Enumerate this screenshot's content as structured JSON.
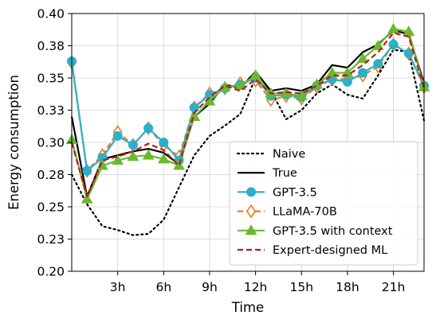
{
  "chart_data": {
    "type": "line",
    "xlabel": "Time",
    "ylabel": "Energy consumption",
    "xlim": [
      0,
      23
    ],
    "ylim": [
      0.2,
      0.4
    ],
    "x_ticks": [
      3,
      6,
      9,
      12,
      15,
      18,
      21
    ],
    "x_tick_labels": [
      "3h",
      "6h",
      "9h",
      "12h",
      "15h",
      "18h",
      "21h"
    ],
    "y_ticks": [
      0.2,
      0.225,
      0.25,
      0.275,
      0.3,
      0.325,
      0.35,
      0.375,
      0.4
    ],
    "y_tick_labels": [
      "0.20",
      "0.23",
      "0.25",
      "0.28",
      "0.30",
      "0.33",
      "0.35",
      "0.38",
      "0.40"
    ],
    "grid": true,
    "legend_position": "bottom-right",
    "x": [
      0,
      1,
      2,
      3,
      4,
      5,
      6,
      7,
      8,
      9,
      10,
      11,
      12,
      13,
      14,
      15,
      16,
      17,
      18,
      19,
      20,
      21,
      22,
      23
    ],
    "series": [
      {
        "name": "Naive",
        "color": "#000000",
        "style": "dotted",
        "marker": "none",
        "values": [
          0.275,
          0.252,
          0.235,
          0.232,
          0.228,
          0.229,
          0.24,
          0.265,
          0.29,
          0.305,
          0.313,
          0.322,
          0.35,
          0.34,
          0.318,
          0.325,
          0.338,
          0.345,
          0.337,
          0.334,
          0.352,
          0.372,
          0.37,
          0.317
        ]
      },
      {
        "name": "True",
        "color": "#000000",
        "style": "solid",
        "marker": "none",
        "values": [
          0.32,
          0.258,
          0.287,
          0.29,
          0.293,
          0.295,
          0.292,
          0.283,
          0.32,
          0.33,
          0.345,
          0.342,
          0.355,
          0.34,
          0.342,
          0.34,
          0.345,
          0.36,
          0.358,
          0.37,
          0.376,
          0.387,
          0.384,
          0.346
        ]
      },
      {
        "name": "GPT-3.5",
        "color": "#2bb0c8",
        "style": "solid",
        "marker": "circle",
        "values": [
          0.363,
          0.278,
          0.288,
          0.305,
          0.298,
          0.311,
          0.3,
          0.286,
          0.327,
          0.337,
          0.342,
          0.345,
          0.35,
          0.336,
          0.337,
          0.335,
          0.344,
          0.349,
          0.347,
          0.354,
          0.361,
          0.376,
          0.369,
          0.344
        ]
      },
      {
        "name": "LLaMA-70B",
        "color": "#f0781e",
        "style": "dashed",
        "marker": "diamond",
        "values": [
          0.362,
          0.278,
          0.29,
          0.308,
          0.298,
          0.311,
          0.298,
          0.289,
          0.327,
          0.338,
          0.342,
          0.346,
          0.348,
          0.333,
          0.336,
          0.334,
          0.343,
          0.349,
          0.349,
          0.352,
          0.359,
          0.376,
          0.369,
          0.343
        ]
      },
      {
        "name": "GPT-3.5 with context",
        "color": "#6ab82f",
        "style": "solid",
        "marker": "triangle",
        "values": [
          0.302,
          0.256,
          0.282,
          0.286,
          0.289,
          0.29,
          0.287,
          0.282,
          0.32,
          0.332,
          0.343,
          0.344,
          0.352,
          0.338,
          0.338,
          0.336,
          0.345,
          0.354,
          0.354,
          0.365,
          0.375,
          0.388,
          0.386,
          0.343
        ]
      },
      {
        "name": "Expert-designed ML",
        "color": "#c4161c",
        "style": "dashed",
        "marker": "none",
        "values": [
          0.3,
          0.258,
          0.286,
          0.289,
          0.293,
          0.299,
          0.294,
          0.282,
          0.323,
          0.335,
          0.344,
          0.34,
          0.349,
          0.338,
          0.339,
          0.338,
          0.344,
          0.352,
          0.352,
          0.36,
          0.37,
          0.385,
          0.382,
          0.342
        ]
      }
    ]
  }
}
